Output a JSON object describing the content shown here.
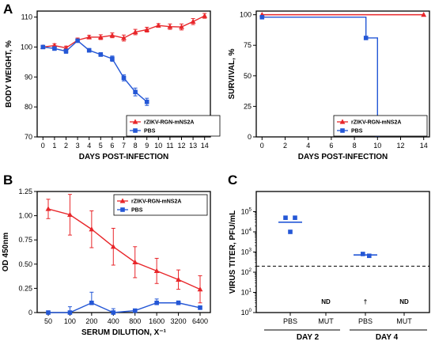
{
  "panels": {
    "A": "A",
    "B": "B",
    "C": "C"
  },
  "chart_data": [
    {
      "id": "weight",
      "type": "line",
      "xlabel": "DAYS POST-INFECTION",
      "ylabel": "BODY WEIGHT, %",
      "xlim": [
        -0.5,
        14.5
      ],
      "ylim": [
        70,
        112
      ],
      "xticks": [
        0,
        1,
        2,
        3,
        4,
        5,
        6,
        7,
        8,
        9,
        10,
        11,
        12,
        13,
        14
      ],
      "yticks": [
        70,
        80,
        90,
        100,
        110
      ],
      "legend_position": "bottom-right",
      "series": [
        {
          "name": "rZIKV-RGN-mNS2A",
          "color": "#e8262a",
          "marker": "triangle",
          "x": [
            0,
            1,
            2,
            3,
            4,
            5,
            6,
            7,
            8,
            9,
            10,
            11,
            12,
            13,
            14
          ],
          "y": [
            100,
            100.5,
            99.7,
            102.3,
            103.3,
            103.3,
            103.9,
            103.0,
            105.0,
            105.8,
            107.2,
            106.8,
            106.7,
            108.5,
            110.4
          ],
          "err": [
            0.4,
            0.6,
            0.6,
            0.7,
            0.6,
            0.8,
            0.8,
            1.0,
            0.9,
            0.8,
            0.6,
            0.9,
            1.0,
            1.0,
            0.8
          ]
        },
        {
          "name": "PBS",
          "color": "#2457d6",
          "marker": "square",
          "x": [
            0,
            1,
            2,
            3,
            4,
            5,
            6,
            7,
            8,
            9
          ],
          "y": [
            100,
            99.5,
            98.6,
            102.1,
            98.9,
            97.5,
            96.1,
            89.7,
            85.0,
            81.7
          ],
          "err": [
            0.3,
            0.6,
            0.7,
            0.5,
            0.6,
            0.6,
            0.9,
            1.0,
            1.3,
            1.2
          ]
        }
      ]
    },
    {
      "id": "survival",
      "type": "line",
      "xlabel": "DAYS POST-INFECTION",
      "ylabel": "SURVIVAL, %",
      "xlim": [
        -0.5,
        14.5
      ],
      "ylim": [
        0,
        103
      ],
      "xticks": [
        0,
        2,
        4,
        6,
        8,
        10,
        12,
        14
      ],
      "yticks": [
        0,
        25,
        50,
        75,
        100
      ],
      "legend_position": "bottom-right",
      "series": [
        {
          "name": "rZIKV-RGN-mNS2A",
          "color": "#e8262a",
          "marker": "triangle",
          "steps": [
            [
              0,
              100
            ],
            [
              14,
              100
            ]
          ],
          "points": [
            [
              0,
              100
            ],
            [
              14,
              100
            ]
          ]
        },
        {
          "name": "PBS",
          "color": "#2457d6",
          "marker": "square",
          "steps": [
            [
              0,
              98
            ],
            [
              9,
              98
            ],
            [
              9,
              81
            ],
            [
              10,
              81
            ],
            [
              10,
              2
            ]
          ],
          "points": [
            [
              0,
              98
            ],
            [
              9,
              81
            ],
            [
              10,
              2
            ]
          ]
        }
      ]
    },
    {
      "id": "elisa",
      "type": "line",
      "xlabel": "SERUM DILUTION, X⁻¹",
      "ylabel": "OD 450nm",
      "categories": [
        "50",
        "100",
        "200",
        "400",
        "800",
        "1600",
        "3200",
        "6400"
      ],
      "ylim": [
        0,
        1.25
      ],
      "yticks": [
        "0",
        "0.25",
        "0.50",
        "0.75",
        "1.00",
        "1.25"
      ],
      "legend_position": "top-right",
      "series": [
        {
          "name": "rZIKV-RGN-mNS2A",
          "color": "#e8262a",
          "marker": "triangle",
          "values": [
            1.07,
            1.01,
            0.86,
            0.68,
            0.52,
            0.43,
            0.34,
            0.24
          ],
          "err": [
            0.1,
            0.21,
            0.19,
            0.19,
            0.16,
            0.13,
            0.1,
            0.14
          ]
        },
        {
          "name": "PBS",
          "color": "#2457d6",
          "marker": "square",
          "values": [
            0.0,
            0.0,
            0.1,
            0.0,
            0.02,
            0.1,
            0.1,
            0.05
          ],
          "err": [
            0.0,
            0.06,
            0.11,
            0.04,
            0.0,
            0.04,
            0.02,
            0.02
          ]
        }
      ]
    },
    {
      "id": "titer",
      "type": "scatter",
      "ylabel": "VIRUS TITER, PFU/mL",
      "ylog": true,
      "ylim": [
        1,
        1000000
      ],
      "yticks_exp": [
        0,
        1,
        2,
        3,
        4,
        5
      ],
      "categories": [
        "PBS",
        "MUT",
        "PBS",
        "MUT"
      ],
      "groups": [
        "DAY 2",
        "DAY 4"
      ],
      "detection_limit": 200,
      "color": "#2457d6",
      "points": [
        {
          "cat": 0,
          "dx": -0.15,
          "y": 50000
        },
        {
          "cat": 0,
          "dx": 0.15,
          "y": 50000
        },
        {
          "cat": 0,
          "dx": 0.0,
          "y": 10000
        },
        {
          "cat": 2,
          "dx": -0.08,
          "y": 800
        },
        {
          "cat": 2,
          "dx": 0.12,
          "y": 650
        }
      ],
      "means": [
        {
          "cat": 0,
          "y": 30000
        },
        {
          "cat": 2,
          "y": 720
        }
      ],
      "annotations": [
        {
          "cat": 1,
          "text": "ND"
        },
        {
          "cat": 2,
          "text": "†"
        },
        {
          "cat": 3,
          "text": "ND"
        }
      ]
    }
  ]
}
